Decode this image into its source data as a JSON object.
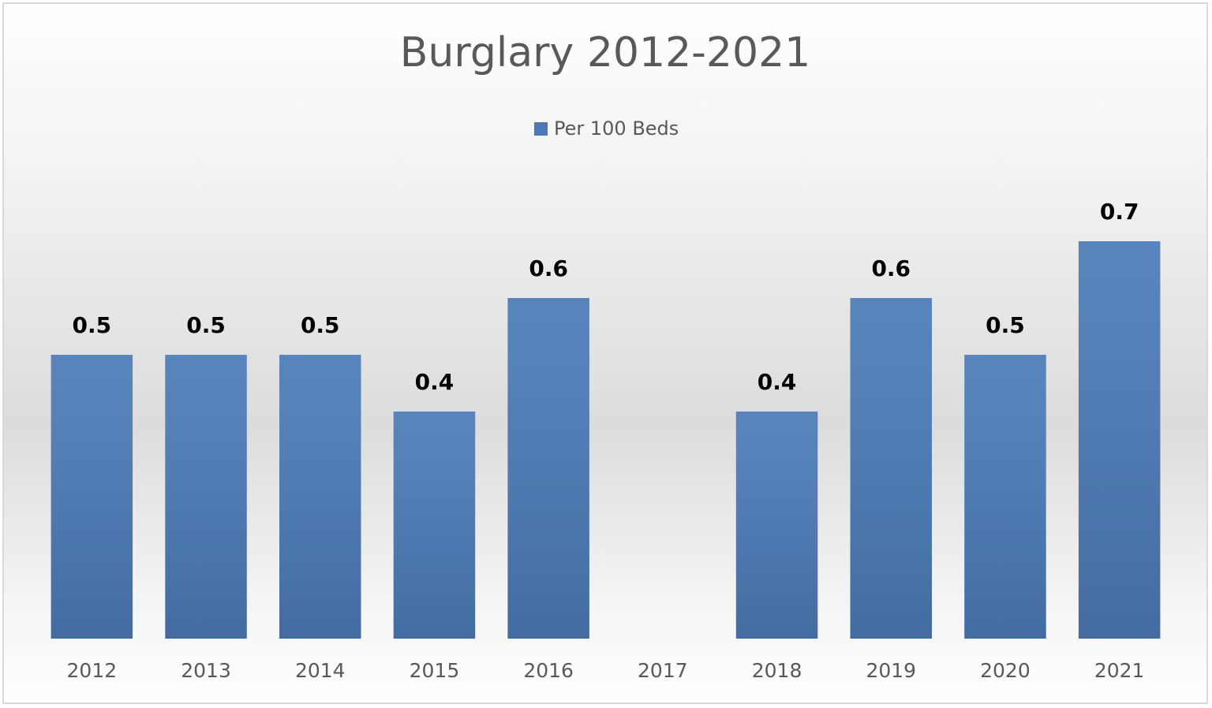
{
  "chart_data": {
    "type": "bar",
    "title": "Burglary 2012-2021",
    "categories": [
      "2012",
      "2013",
      "2014",
      "2015",
      "2016",
      "2017",
      "2018",
      "2019",
      "2020",
      "2021"
    ],
    "series": [
      {
        "name": "Per 100 Beds",
        "color": "#4a7ab7",
        "values": [
          0.5,
          0.5,
          0.5,
          0.4,
          0.6,
          null,
          0.4,
          0.6,
          0.5,
          0.7
        ]
      }
    ],
    "ylim": [
      0,
      0.8
    ],
    "legend": "top"
  }
}
